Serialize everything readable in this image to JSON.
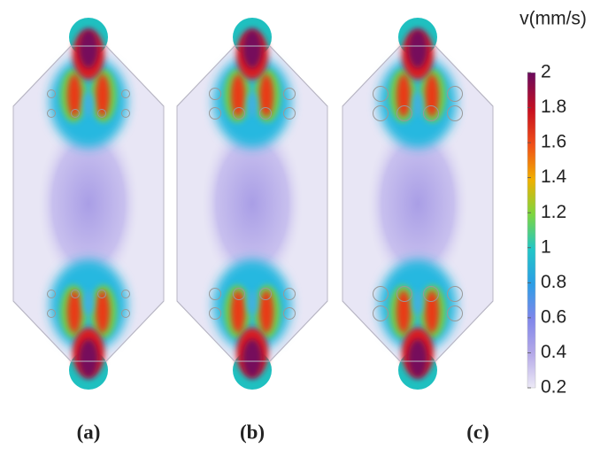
{
  "colorbar": {
    "title": "v(mm/s)",
    "range": [
      0.2,
      2
    ],
    "ticks": [
      2,
      1.8,
      1.6,
      1.4,
      1.2,
      1,
      0.8,
      0.6,
      0.4,
      0.2
    ]
  },
  "panels": [
    {
      "label": "(a)"
    },
    {
      "label": "(b)"
    },
    {
      "label": "(c)"
    }
  ]
}
